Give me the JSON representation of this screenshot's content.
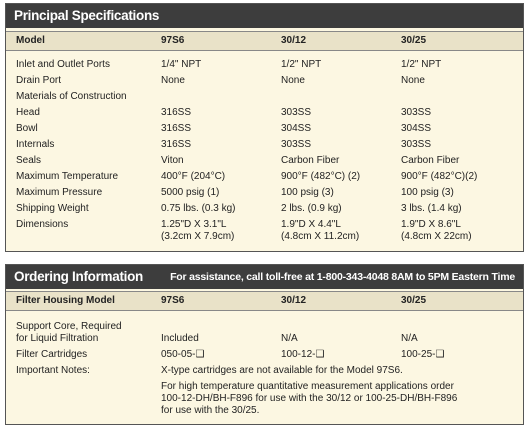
{
  "specifications": {
    "title": "Principal Specifications",
    "header": [
      "Model",
      "97S6",
      "30/12",
      "30/25"
    ],
    "rows": [
      [
        "Inlet and Outlet Ports",
        "1/4\" NPT",
        "1/2\" NPT",
        "1/2\" NPT"
      ],
      [
        "Drain Port",
        "None",
        "None",
        "None"
      ],
      [
        "Materials of Construction"
      ],
      [
        "Head",
        "316SS",
        "303SS",
        "303SS"
      ],
      [
        "Bowl",
        "316SS",
        "304SS",
        "304SS"
      ],
      [
        "Internals",
        "316SS",
        "303SS",
        "303SS"
      ],
      [
        "Seals",
        "Viton",
        "Carbon Fiber",
        "Carbon Fiber"
      ],
      [
        "Maximum Temperature",
        "400°F (204°C)",
        "900°F (482°C) (2)",
        "900°F (482°C)(2)"
      ],
      [
        "Maximum Pressure",
        "5000 psig (1)",
        "100 psig (3)",
        "100 psig (3)"
      ],
      [
        "Shipping Weight",
        "0.75 lbs. (0.3 kg)",
        "2 lbs. (0.9 kg)",
        "3 lbs. (1.4 kg)"
      ],
      [
        "Dimensions",
        "1.25\"D X 3.1\"L\n(3.2cm X 7.9cm)",
        "1.9\"D X 4.4\"L\n(4.8cm X 11.2cm)",
        "1.9\"D X 8.6\"L\n(4.8cm X 22cm)"
      ]
    ]
  },
  "ordering": {
    "title": "Ordering Information",
    "assistance": "For assistance, call toll-free at 1-800-343-4048 8AM to 5PM Eastern Time",
    "header": [
      "Filter Housing Model",
      "97S6",
      "30/12",
      "30/25"
    ],
    "rows": [
      [
        "Support Core, Required\nfor Liquid Filtration",
        "Included",
        "N/A",
        "N/A"
      ],
      [
        "Filter Cartridges",
        "050-05-❑",
        "100-12-❑",
        "100-25-❑"
      ]
    ],
    "notes": {
      "label": "Important Notes:",
      "items": [
        "X-type cartridges are not available for the Model 97S6.",
        "For high temperature quantitative measurement applications order\n100-12-DH/BH-F896 for use with the 30/12 or 100-25-DH/BH-F896\nfor use with the 30/25."
      ]
    }
  }
}
